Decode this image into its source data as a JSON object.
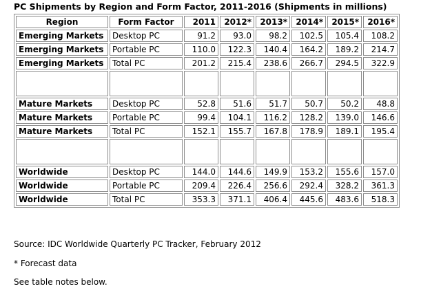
{
  "title": "PC Shipments by Region and Form Factor, 2011-2016 (Shipments in millions)",
  "headers": [
    "Region",
    "Form Factor",
    "2011",
    "2012*",
    "2013*",
    "2014*",
    "2015*",
    "2016*"
  ],
  "rows": [
    [
      "Emerging Markets",
      "Desktop PC",
      "91.2",
      "93.0",
      "98.2",
      "102.5",
      "105.4",
      "108.2"
    ],
    [
      "Emerging Markets",
      "Portable PC",
      "110.0",
      "122.3",
      "140.4",
      "164.2",
      "189.2",
      "214.7"
    ],
    [
      "Emerging Markets",
      "Total PC",
      "201.2",
      "215.4",
      "238.6",
      "266.7",
      "294.5",
      "322.9"
    ],
    [
      "Mature Markets",
      "Desktop PC",
      "52.8",
      "51.6",
      "51.7",
      "50.7",
      "50.2",
      "48.8"
    ],
    [
      "Mature Markets",
      "Portable PC",
      "99.4",
      "104.1",
      "116.2",
      "128.2",
      "139.0",
      "146.6"
    ],
    [
      "Mature Markets",
      "Total PC",
      "152.1",
      "155.7",
      "167.8",
      "178.9",
      "189.1",
      "195.4"
    ],
    [
      "Worldwide",
      "Desktop PC",
      "144.0",
      "144.6",
      "149.9",
      "153.2",
      "155.6",
      "157.0"
    ],
    [
      "Worldwide",
      "Portable PC",
      "209.4",
      "226.4",
      "256.6",
      "292.4",
      "328.2",
      "361.3"
    ],
    [
      "Worldwide",
      "Total PC",
      "353.3",
      "371.1",
      "406.4",
      "445.6",
      "483.6",
      "518.3"
    ]
  ],
  "notes": {
    "source": "Source: IDC Worldwide Quarterly PC Tracker, February 2012",
    "forecast": "* Forecast data",
    "see_below": "See table notes below."
  }
}
